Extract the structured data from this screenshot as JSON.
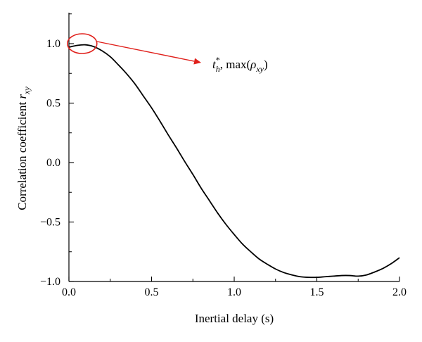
{
  "chart_data": {
    "type": "line",
    "xlabel": "Inertial delay (s)",
    "ylabel": {
      "base": "Correlation coefficient ",
      "symbol": "r",
      "subscript": "xy"
    },
    "xlim": [
      0.0,
      2.0
    ],
    "ylim": [
      -1.0,
      1.0
    ],
    "x_ticks": [
      0.0,
      0.5,
      1.0,
      1.5,
      2.0
    ],
    "x_tick_labels": [
      "0.0",
      "0.5",
      "1.0",
      "1.5",
      "2.0"
    ],
    "y_ticks": [
      -1.0,
      -0.5,
      0.0,
      0.5,
      1.0
    ],
    "y_tick_labels": [
      "−1.0",
      "−0.5",
      "0.0",
      "0.5",
      "1.0"
    ],
    "grid": false,
    "series": [
      {
        "color": "#000000",
        "x": [
          0.0,
          0.05,
          0.1,
          0.15,
          0.2,
          0.25,
          0.3,
          0.35,
          0.4,
          0.45,
          0.5,
          0.55,
          0.6,
          0.65,
          0.7,
          0.75,
          0.8,
          0.85,
          0.9,
          0.95,
          1.0,
          1.05,
          1.1,
          1.15,
          1.2,
          1.25,
          1.3,
          1.35,
          1.4,
          1.45,
          1.5,
          1.55,
          1.6,
          1.65,
          1.7,
          1.75,
          1.8,
          1.85,
          1.9,
          1.95,
          2.0
        ],
        "y": [
          0.97,
          0.985,
          0.99,
          0.975,
          0.94,
          0.89,
          0.82,
          0.745,
          0.66,
          0.56,
          0.46,
          0.35,
          0.235,
          0.125,
          0.01,
          -0.1,
          -0.215,
          -0.32,
          -0.425,
          -0.52,
          -0.605,
          -0.685,
          -0.75,
          -0.81,
          -0.855,
          -0.895,
          -0.925,
          -0.945,
          -0.96,
          -0.965,
          -0.965,
          -0.96,
          -0.955,
          -0.95,
          -0.95,
          -0.955,
          -0.945,
          -0.92,
          -0.89,
          -0.85,
          -0.8
        ]
      }
    ],
    "annotation": {
      "ellipse_center": {
        "x": 0.08,
        "y": 1.0
      },
      "arrow_to": {
        "x": 0.8,
        "y": 0.84
      },
      "label": {
        "t": "t",
        "t_sup": "*",
        "t_sub": "h",
        "rest": ", max(",
        "rho": "ρ",
        "rho_sub": "xy",
        "close": ")"
      },
      "color": "#e0201b"
    }
  }
}
